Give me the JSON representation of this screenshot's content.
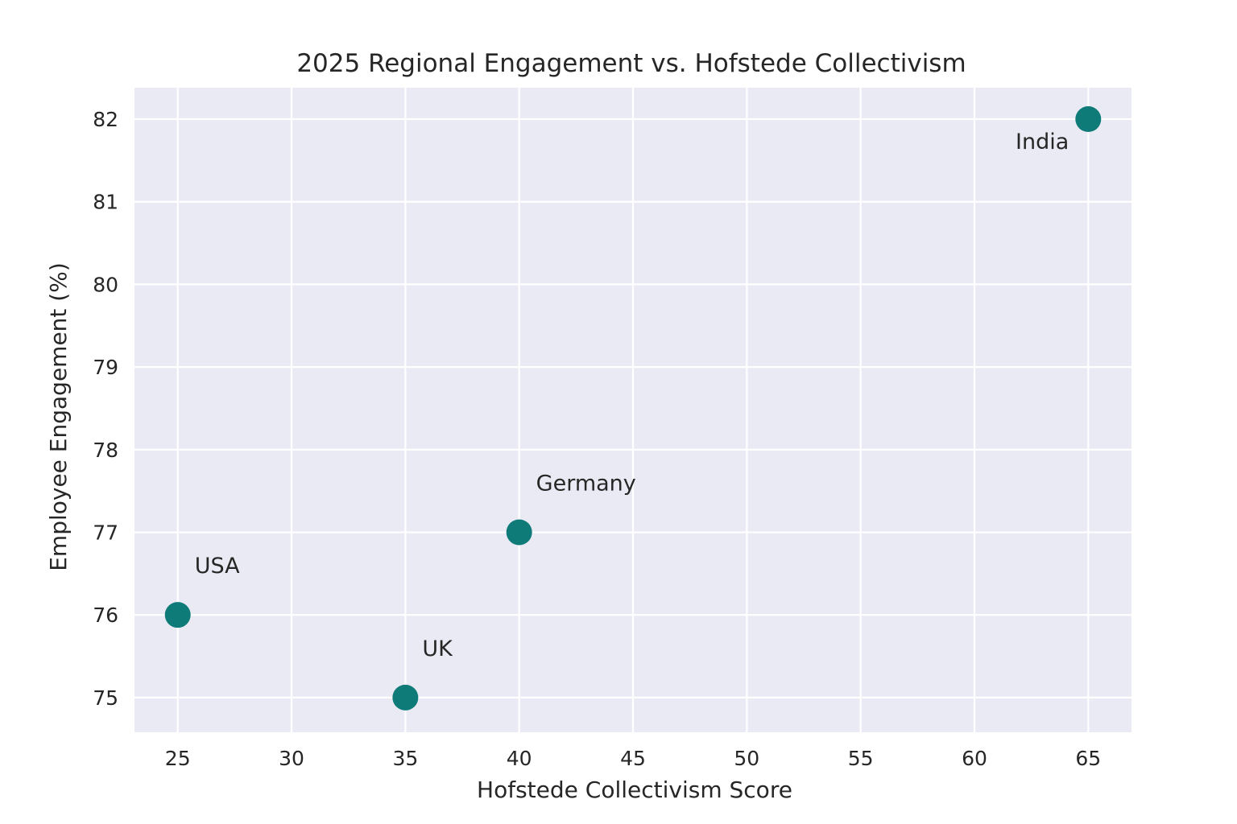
{
  "chart_data": {
    "type": "scatter",
    "title": "2025 Regional Engagement vs. Hofstede Collectivism",
    "xlabel": "Hofstede Collectivism Score",
    "ylabel": "Employee Engagement (%)",
    "xlim": [
      23.1,
      66.9
    ],
    "ylim": [
      74.58,
      82.38
    ],
    "xticks": [
      25,
      30,
      35,
      40,
      45,
      50,
      55,
      60,
      65
    ],
    "yticks": [
      75,
      76,
      77,
      78,
      79,
      80,
      81,
      82
    ],
    "grid": true,
    "points": [
      {
        "label": "USA",
        "x": 25,
        "y": 76
      },
      {
        "label": "UK",
        "x": 35,
        "y": 75
      },
      {
        "label": "Germany",
        "x": 40,
        "y": 77
      },
      {
        "label": "India",
        "x": 65,
        "y": 82
      }
    ],
    "colors": {
      "point": "#0f7b78",
      "plot_background": "#eaeaf4",
      "grid": "#ffffff"
    }
  }
}
